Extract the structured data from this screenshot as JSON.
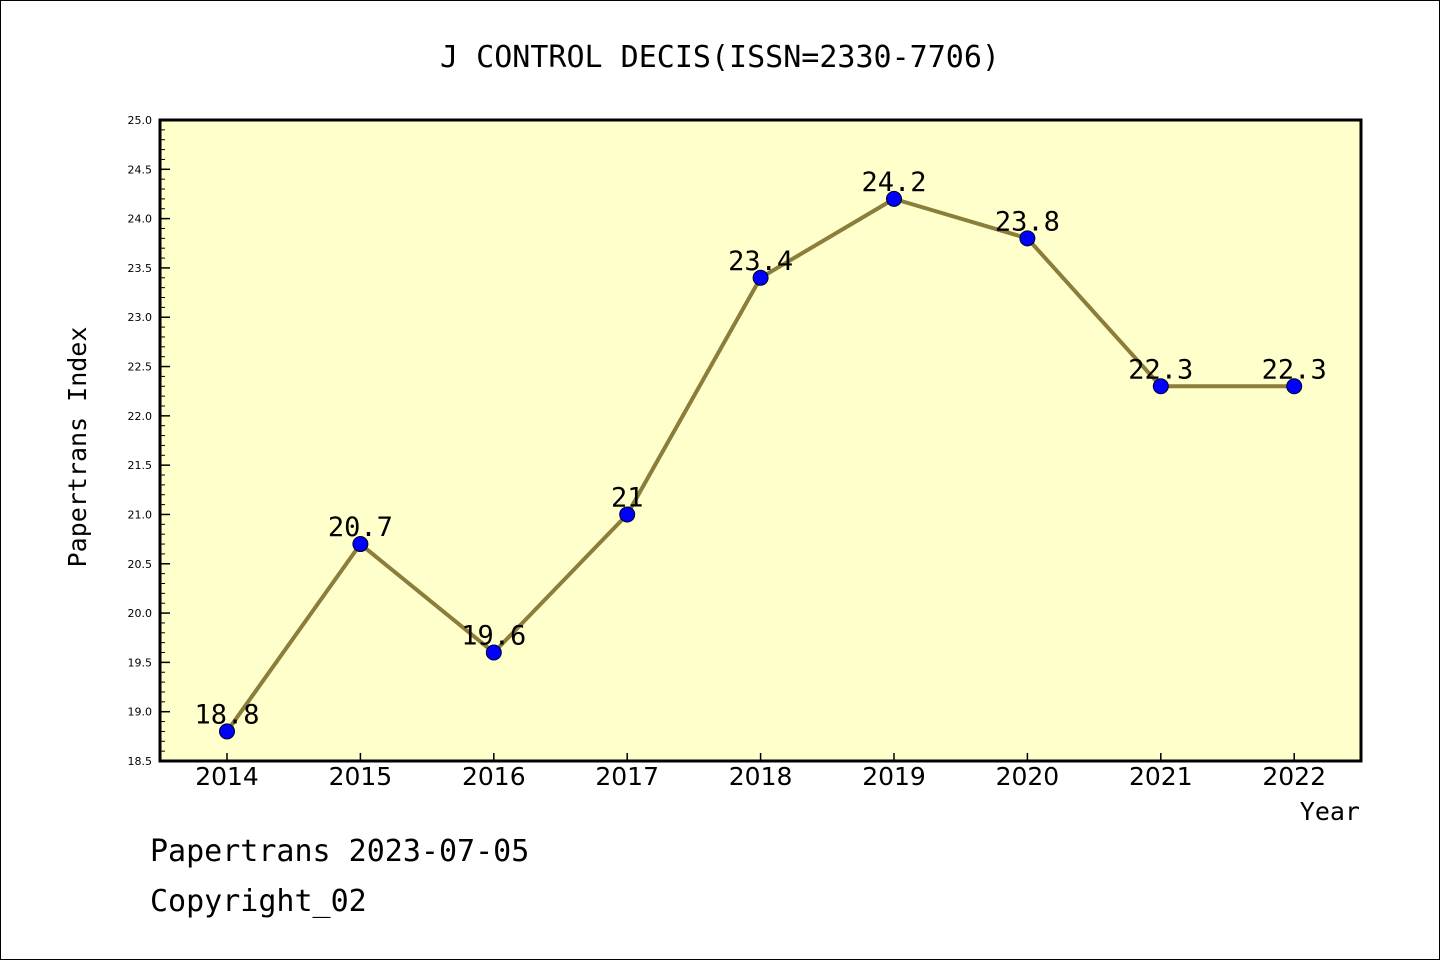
{
  "footer": {
    "line1": "Papertrans 2023-07-05",
    "line2": "Copyright_02"
  },
  "colors": {
    "background": "#ffffff",
    "plot_background": "#ffffcc",
    "line": "#8b7d3a",
    "marker": "#0000ff"
  },
  "chart_data": {
    "type": "line",
    "title": "J CONTROL DECIS(ISSN=2330-7706)",
    "xlabel": "Year",
    "ylabel": "Papertrans Index",
    "categories": [
      "2014",
      "2015",
      "2016",
      "2017",
      "2018",
      "2019",
      "2020",
      "2021",
      "2022"
    ],
    "series": [
      {
        "values": [
          18.8,
          20.7,
          19.6,
          21,
          23.4,
          24.2,
          23.8,
          22.3,
          22.3
        ],
        "labels": [
          "18.8",
          "20.7",
          "19.6",
          "21",
          "23.4",
          "24.2",
          "23.8",
          "22.3",
          "22.3"
        ]
      }
    ],
    "ylim": [
      18.5,
      25.0
    ],
    "yticks": [
      "18.5",
      "19.0",
      "19.5",
      "20.0",
      "20.5",
      "21.0",
      "21.5",
      "22.0",
      "22.5",
      "23.0",
      "23.5",
      "24.0",
      "24.5",
      "25.0"
    ],
    "grid": false,
    "legend": "none"
  }
}
